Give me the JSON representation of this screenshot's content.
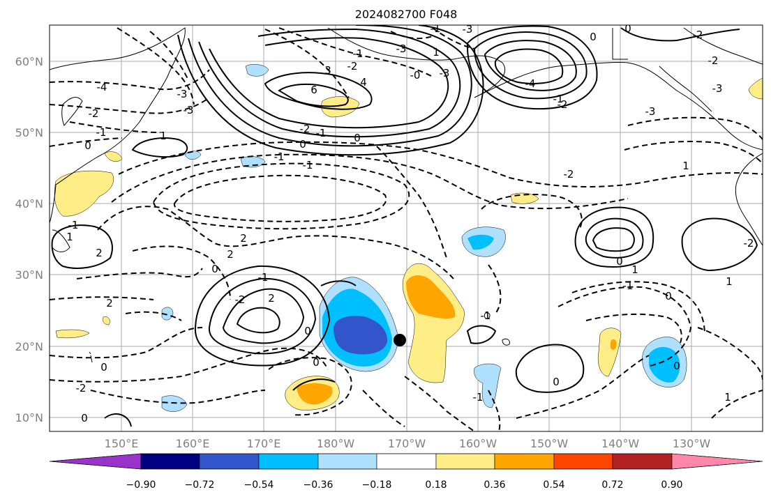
{
  "title": "2024082700 F048",
  "lat_labels": [
    "10°N",
    "20°N",
    "30°N",
    "40°N",
    "50°N",
    "60°N"
  ],
  "lon_labels": [
    "150°E",
    "160°E",
    "170°E",
    "180°W",
    "170°W",
    "160°W",
    "150°W",
    "140°W",
    "130°W"
  ],
  "contour_labels": [
    "-4",
    "-2",
    "-1",
    "0",
    "-3",
    "-3",
    "3",
    "4",
    "6",
    "-2",
    "-0",
    "-3",
    "-1",
    "-3",
    "1",
    "-1",
    "-3",
    "-4",
    "-2",
    "-1",
    "0",
    "0",
    "-2",
    "-3",
    "-2",
    "-3",
    "-2",
    "-1",
    "0",
    "0",
    "-1",
    "-1",
    "1",
    "-2",
    "1",
    "-1",
    "1",
    "2",
    "2",
    "2",
    "0",
    "-1",
    "-2",
    "2",
    "2",
    "0",
    "1",
    "-1",
    "0",
    "1",
    "-2",
    "0",
    "-1",
    "0",
    "0",
    "-2",
    "0",
    "0",
    "-1",
    "1",
    "0",
    "2",
    "1",
    "-1",
    "-2",
    "0",
    "0"
  ],
  "colorbar": {
    "tick_labels": [
      "−0.90",
      "−0.72",
      "−0.54",
      "−0.36",
      "−0.18",
      "0.18",
      "0.36",
      "0.54",
      "0.72",
      "0.90"
    ],
    "colors": [
      "#9933cc",
      "#000080",
      "#3355cc",
      "#00bfff",
      "#b0e0ff",
      "#ffffff",
      "#ffee88",
      "#ffa500",
      "#ff4500",
      "#b22222",
      "#ff88aa"
    ]
  },
  "shading_colors": {
    "light_blue": "#b0e0ff",
    "blue": "#00bfff",
    "dark_blue": "#3355cc",
    "light_yellow": "#ffee88",
    "orange": "#ffa500"
  },
  "marker": "center-dot"
}
